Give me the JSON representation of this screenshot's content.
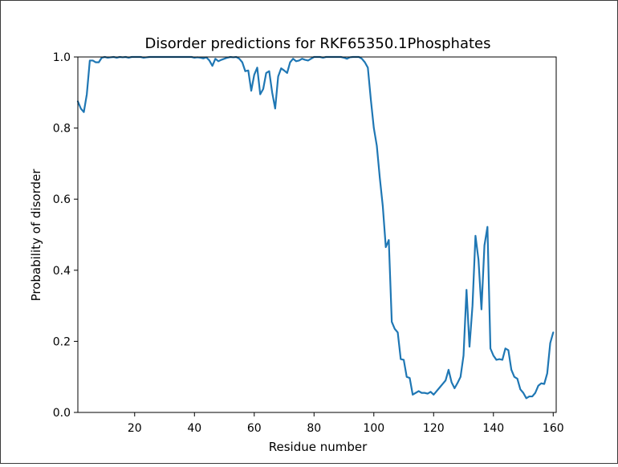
{
  "chart_data": {
    "type": "line",
    "title": "Disorder predictions for RKF65350.1Phosphates",
    "xlabel": "Residue number",
    "ylabel": "Probability of disorder",
    "xlim": [
      1,
      161
    ],
    "ylim": [
      0.0,
      1.0
    ],
    "x_ticks": [
      20,
      40,
      60,
      80,
      100,
      120,
      140,
      160
    ],
    "y_ticks": [
      0.0,
      0.2,
      0.4,
      0.6,
      0.8,
      1.0
    ],
    "x_tick_labels": [
      "20",
      "40",
      "60",
      "80",
      "100",
      "120",
      "140",
      "160"
    ],
    "y_tick_labels": [
      "0.0",
      "0.2",
      "0.4",
      "0.6",
      "0.8",
      "1.0"
    ],
    "grid": false,
    "line_color": "#1f77b4",
    "series": [
      {
        "x": [
          1,
          2,
          3,
          4,
          5,
          6,
          7,
          8,
          9,
          10,
          11,
          12,
          13,
          14,
          15,
          16,
          17,
          18,
          19,
          20,
          21,
          22,
          23,
          24,
          25,
          26,
          27,
          28,
          29,
          30,
          31,
          32,
          33,
          34,
          35,
          36,
          37,
          38,
          39,
          40,
          41,
          42,
          43,
          44,
          45,
          46,
          47,
          48,
          49,
          50,
          51,
          52,
          53,
          54,
          55,
          56,
          57,
          58,
          59,
          60,
          61,
          62,
          63,
          64,
          65,
          66,
          67,
          68,
          69,
          70,
          71,
          72,
          73,
          74,
          75,
          76,
          77,
          78,
          79,
          80,
          81,
          82,
          83,
          84,
          85,
          86,
          87,
          88,
          89,
          90,
          91,
          92,
          93,
          94,
          95,
          96,
          97,
          98,
          99,
          100,
          101,
          102,
          103,
          104,
          105,
          106,
          107,
          108,
          109,
          110,
          111,
          112,
          113,
          114,
          115,
          116,
          117,
          118,
          119,
          120,
          121,
          122,
          123,
          124,
          125,
          126,
          127,
          128,
          129,
          130,
          131,
          132,
          133,
          134,
          135,
          136,
          137,
          138,
          139,
          140,
          141,
          142,
          143,
          144,
          145,
          146,
          147,
          148,
          149,
          150,
          151,
          152,
          153,
          154,
          155,
          156,
          157,
          158,
          159,
          160
        ],
        "values": [
          0.875,
          0.855,
          0.845,
          0.895,
          0.99,
          0.99,
          0.985,
          0.985,
          0.998,
          1.0,
          0.998,
          0.999,
          1.0,
          0.998,
          1.0,
          0.999,
          1.0,
          0.998,
          1.0,
          1.0,
          1.0,
          1.0,
          0.998,
          0.999,
          1.0,
          1.0,
          1.0,
          1.0,
          1.0,
          1.0,
          1.0,
          1.0,
          1.0,
          1.0,
          1.0,
          1.0,
          1.0,
          1.0,
          1.0,
          0.998,
          0.999,
          0.998,
          0.996,
          0.999,
          0.99,
          0.975,
          0.995,
          0.988,
          0.992,
          0.995,
          0.998,
          1.0,
          0.999,
          1.0,
          0.995,
          0.985,
          0.96,
          0.962,
          0.905,
          0.95,
          0.97,
          0.895,
          0.91,
          0.955,
          0.96,
          0.9,
          0.855,
          0.945,
          0.968,
          0.962,
          0.955,
          0.985,
          0.995,
          0.988,
          0.99,
          0.995,
          0.992,
          0.99,
          0.995,
          1.0,
          1.0,
          1.0,
          0.998,
          1.0,
          1.0,
          1.0,
          1.0,
          1.0,
          1.0,
          0.998,
          0.995,
          0.999,
          1.0,
          1.0,
          1.0,
          0.995,
          0.985,
          0.97,
          0.88,
          0.8,
          0.75,
          0.66,
          0.58,
          0.465,
          0.485,
          0.255,
          0.235,
          0.225,
          0.15,
          0.148,
          0.1,
          0.097,
          0.05,
          0.055,
          0.06,
          0.055,
          0.055,
          0.053,
          0.058,
          0.05,
          0.06,
          0.07,
          0.08,
          0.09,
          0.12,
          0.085,
          0.068,
          0.083,
          0.1,
          0.16,
          0.345,
          0.185,
          0.3,
          0.497,
          0.43,
          0.29,
          0.47,
          0.522,
          0.18,
          0.16,
          0.148,
          0.15,
          0.148,
          0.18,
          0.175,
          0.12,
          0.1,
          0.095,
          0.065,
          0.055,
          0.04,
          0.045,
          0.045,
          0.055,
          0.075,
          0.082,
          0.08,
          0.11,
          0.195,
          0.225
        ]
      }
    ]
  }
}
